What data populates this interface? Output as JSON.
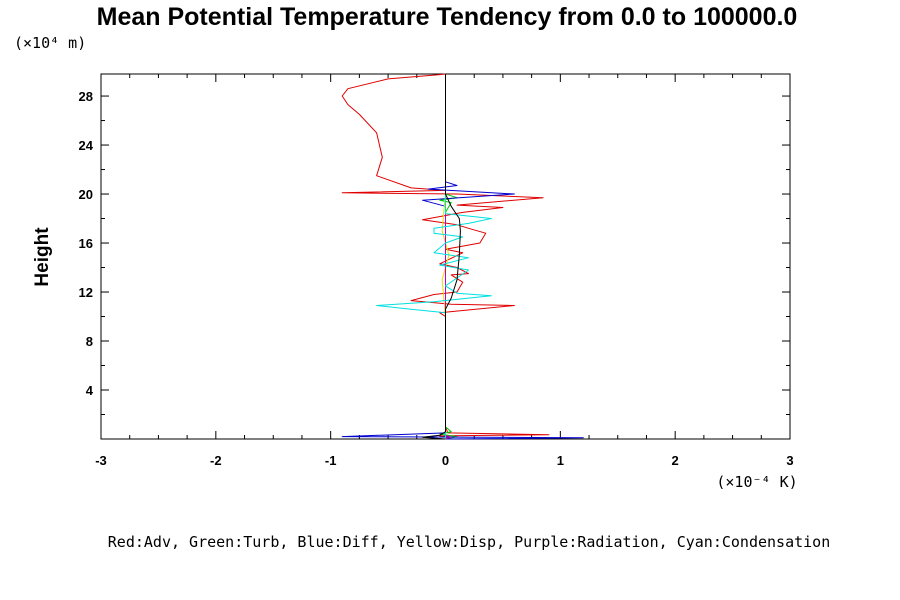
{
  "chart_data": {
    "type": "line",
    "title": "Mean Potential Temperature Tendency from 0.0 to 100000.0",
    "ylabel": "Height",
    "x_unit_label": "(×10⁻⁴ K)",
    "y_unit_label": "(×10⁴ m)",
    "xlim": [
      -3,
      3
    ],
    "ylim": [
      0,
      29.8
    ],
    "x_ticks": [
      "-3",
      "-2",
      "-1",
      "0",
      "1",
      "2",
      "3"
    ],
    "y_ticks": [
      "4",
      "8",
      "12",
      "16",
      "20",
      "24",
      "28"
    ],
    "legend_text": "Red:Adv, Green:Turb, Blue:Diff, Yellow:Disp, Purple:Radiation, Cyan:Condensation",
    "grid": false,
    "series": [
      {
        "color": "#e00000",
        "points": [
          [
            0,
            0
          ],
          [
            0.03,
            0.1
          ],
          [
            -0.05,
            0.25
          ],
          [
            0.9,
            0.35
          ],
          [
            0.02,
            0.5
          ],
          [
            0,
            1
          ],
          [
            0,
            10
          ],
          [
            -0.05,
            10.3
          ],
          [
            0.6,
            10.9
          ],
          [
            0.05,
            11
          ],
          [
            -0.3,
            11.3
          ],
          [
            -0.1,
            11.8
          ],
          [
            0.1,
            12
          ],
          [
            0.15,
            12.8
          ],
          [
            0.05,
            13.4
          ],
          [
            0.2,
            13.5
          ],
          [
            0.1,
            14
          ],
          [
            -0.05,
            14.3
          ],
          [
            0.15,
            15.2
          ],
          [
            0,
            15.5
          ],
          [
            0.3,
            16
          ],
          [
            0.35,
            16.8
          ],
          [
            0.2,
            17.2
          ],
          [
            0.1,
            17.5
          ],
          [
            -0.2,
            17.9
          ],
          [
            0.15,
            18.5
          ],
          [
            0.5,
            18.9
          ],
          [
            0.1,
            19.1
          ],
          [
            0.85,
            19.7
          ],
          [
            0.1,
            20
          ],
          [
            -0.9,
            20.1
          ],
          [
            0,
            20.3
          ],
          [
            -0.3,
            20.5
          ],
          [
            -0.6,
            21.5
          ],
          [
            -0.55,
            23
          ],
          [
            -0.6,
            25
          ],
          [
            -0.75,
            26.5
          ],
          [
            -0.85,
            27.3
          ],
          [
            -0.9,
            28
          ],
          [
            -0.85,
            28.6
          ],
          [
            -0.5,
            29.4
          ],
          [
            -0.05,
            29.75
          ],
          [
            0,
            29.8
          ]
        ]
      },
      {
        "color": "#00c800",
        "points": [
          [
            0,
            0
          ],
          [
            0.1,
            0.2
          ],
          [
            -0.05,
            0.4
          ],
          [
            0.05,
            0.6
          ],
          [
            0,
            1
          ],
          [
            0,
            18.5
          ],
          [
            0.05,
            19.3
          ],
          [
            -0.05,
            19.5
          ],
          [
            0.1,
            19.7
          ],
          [
            0,
            20
          ],
          [
            0,
            29.8
          ]
        ]
      },
      {
        "color": "#0000d0",
        "points": [
          [
            0,
            0
          ],
          [
            1.2,
            0.1
          ],
          [
            -0.9,
            0.2
          ],
          [
            0,
            0.5
          ],
          [
            0,
            19
          ],
          [
            -0.2,
            19.5
          ],
          [
            0.6,
            20
          ],
          [
            -0.15,
            20.4
          ],
          [
            0.1,
            20.7
          ],
          [
            0,
            21
          ],
          [
            0,
            29.8
          ]
        ]
      },
      {
        "color": "#e0e000",
        "points": [
          [
            0,
            0
          ],
          [
            0,
            10
          ],
          [
            -0.03,
            13
          ],
          [
            0.03,
            15
          ],
          [
            -0.03,
            17
          ],
          [
            0,
            20
          ],
          [
            0,
            29.8
          ]
        ]
      },
      {
        "color": "#c000c0",
        "points": [
          [
            0,
            0
          ],
          [
            0.05,
            0.15
          ],
          [
            0,
            0.3
          ],
          [
            0,
            29.8
          ]
        ]
      },
      {
        "color": "#00e0e0",
        "points": [
          [
            0,
            0
          ],
          [
            0,
            10.3
          ],
          [
            -0.3,
            10.6
          ],
          [
            -0.6,
            10.9
          ],
          [
            -0.1,
            11.2
          ],
          [
            0.2,
            11.5
          ],
          [
            0.4,
            11.7
          ],
          [
            0.1,
            11.9
          ],
          [
            0,
            12.5
          ],
          [
            0.2,
            13.8
          ],
          [
            -0.05,
            14.2
          ],
          [
            0.2,
            14.8
          ],
          [
            -0.1,
            15.2
          ],
          [
            0,
            16
          ],
          [
            0.15,
            16.5
          ],
          [
            -0.1,
            16.8
          ],
          [
            -0.1,
            17.2
          ],
          [
            0.2,
            17.6
          ],
          [
            0.4,
            18
          ],
          [
            0,
            18.4
          ],
          [
            0,
            29.8
          ]
        ]
      },
      {
        "color": "#000000",
        "points": [
          [
            0,
            0
          ],
          [
            -0.2,
            0.15
          ],
          [
            -0.05,
            0.3
          ],
          [
            0,
            0.6
          ],
          [
            0,
            10.6
          ],
          [
            0.05,
            11.5
          ],
          [
            0.1,
            13
          ],
          [
            0.12,
            15
          ],
          [
            0.13,
            17
          ],
          [
            0.12,
            18
          ],
          [
            0.05,
            19
          ],
          [
            0,
            20
          ],
          [
            0,
            29.8
          ]
        ]
      }
    ]
  }
}
